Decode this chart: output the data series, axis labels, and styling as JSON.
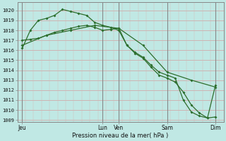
{
  "title": "Pression niveau de la mer( hPa )",
  "bg_color": "#c0e8e4",
  "plot_bg_color": "#c0e8e4",
  "grid_major_color": "#d4a0a0",
  "grid_minor_color": "#d4b8b8",
  "line_color": "#2d6e2d",
  "vline_color": "#888888",
  "ylabel_vals": [
    1009,
    1010,
    1011,
    1012,
    1013,
    1014,
    1015,
    1016,
    1017,
    1018,
    1019,
    1020
  ],
  "xtick_labels": [
    "Jeu",
    "",
    "Lun",
    "Ven",
    "",
    "Sam",
    "",
    "Dim"
  ],
  "xtick_positions": [
    0,
    3,
    5,
    6,
    7.5,
    9,
    10.5,
    12
  ],
  "major_vlines_x": [
    0,
    5,
    6,
    9,
    12
  ],
  "line1_x": [
    0,
    0.5,
    1.0,
    1.5,
    2.0,
    2.5,
    3.0,
    3.5,
    4.0,
    4.5,
    5.0,
    5.5,
    6.0,
    6.5,
    7.0,
    7.5,
    8.0,
    8.5,
    9.0,
    9.5,
    10.0,
    10.5,
    11.0,
    11.5,
    12.0
  ],
  "line1_y": [
    1016.2,
    1018.0,
    1019.0,
    1019.2,
    1019.5,
    1020.1,
    1019.9,
    1019.7,
    1019.5,
    1018.8,
    1018.5,
    1018.3,
    1018.0,
    1016.5,
    1015.7,
    1015.2,
    1014.3,
    1013.5,
    1013.2,
    1012.8,
    1011.8,
    1010.5,
    1009.7,
    1009.2,
    1009.3
  ],
  "line2_x": [
    0,
    0.5,
    1.0,
    1.5,
    2.0,
    2.5,
    3.0,
    3.5,
    4.0,
    4.5,
    5.0,
    5.5,
    6.0,
    6.5,
    7.0,
    7.5,
    8.0,
    8.5,
    9.0,
    9.5,
    10.0,
    10.5,
    11.0,
    11.5,
    12.0
  ],
  "line2_y": [
    1017.0,
    1017.1,
    1017.2,
    1017.5,
    1017.8,
    1018.0,
    1018.2,
    1018.4,
    1018.5,
    1018.3,
    1018.0,
    1018.1,
    1018.2,
    1016.5,
    1015.8,
    1015.3,
    1014.5,
    1013.8,
    1013.5,
    1013.2,
    1011.0,
    1009.8,
    1009.4,
    1009.2,
    1012.5
  ],
  "line3_x": [
    0,
    1.5,
    3.0,
    4.5,
    6.0,
    7.5,
    9.0,
    10.5,
    12.0
  ],
  "line3_y": [
    1016.5,
    1017.5,
    1018.0,
    1018.5,
    1018.2,
    1016.5,
    1013.8,
    1013.0,
    1012.3
  ],
  "ylim": [
    1008.8,
    1020.8
  ],
  "xlim": [
    -0.3,
    12.5
  ],
  "figsize": [
    3.2,
    2.0
  ],
  "dpi": 100
}
